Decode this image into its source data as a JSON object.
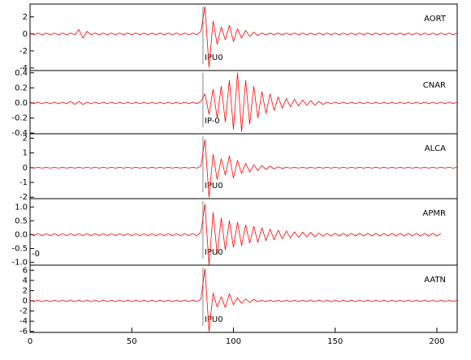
{
  "chart_data": {
    "type": "line",
    "x": [
      0,
      2,
      4,
      6,
      8,
      10,
      12,
      14,
      16,
      18,
      20,
      22,
      24,
      26,
      28,
      30,
      32,
      34,
      36,
      38,
      40,
      42,
      44,
      46,
      48,
      50,
      52,
      54,
      56,
      58,
      60,
      62,
      64,
      66,
      68,
      70,
      72,
      74,
      76,
      78,
      80,
      82,
      84,
      86,
      88,
      90,
      92,
      94,
      96,
      98,
      100,
      102,
      104,
      106,
      108,
      110,
      112,
      114,
      116,
      118,
      120,
      122,
      124,
      126,
      128,
      130,
      132,
      134,
      136,
      138,
      140,
      142,
      144,
      146,
      148,
      150,
      152,
      154,
      156,
      158,
      160,
      162,
      164,
      166,
      168,
      170,
      172,
      174,
      176,
      178,
      180,
      182,
      184,
      186,
      188,
      190,
      192,
      194,
      196,
      198,
      200,
      202,
      204,
      206,
      208,
      210
    ],
    "xlim": [
      0,
      210
    ],
    "xticks": [
      0,
      50,
      100,
      150,
      200
    ],
    "series": [
      {
        "name": "AORT",
        "color": "#ff0000",
        "ylim": [
          -4.3,
          3.5
        ],
        "yticks": [
          -4,
          -2,
          0,
          2
        ],
        "pick": {
          "x": 85,
          "label": "IPU0"
        },
        "values": [
          0.1,
          -0.1,
          0.1,
          -0.1,
          0.1,
          -0.1,
          0.1,
          -0.1,
          0.1,
          -0.1,
          0.1,
          -0.1,
          0.5,
          -0.5,
          0.3,
          -0.1,
          0.1,
          -0.1,
          0.1,
          -0.1,
          0.1,
          -0.1,
          0.1,
          -0.1,
          0.1,
          -0.1,
          0.1,
          -0.1,
          0.1,
          -0.1,
          0.1,
          -0.1,
          0.1,
          -0.1,
          0.1,
          -0.1,
          0.1,
          -0.1,
          0.1,
          -0.1,
          0.1,
          -0.1,
          0.3,
          3.2,
          -3.9,
          1.5,
          -1.2,
          0.8,
          -0.7,
          1.0,
          -0.9,
          0.6,
          -0.5,
          0.4,
          -0.3,
          0.2,
          -0.2,
          0.1,
          -0.1,
          0.1,
          -0.1,
          0.1,
          -0.1,
          0.1,
          -0.1,
          0.1,
          -0.1,
          0.1,
          -0.1,
          0.1,
          -0.1,
          0.1,
          -0.1,
          0.1,
          -0.1,
          0.1,
          -0.1,
          0.1,
          -0.1,
          0.1,
          -0.1,
          0.1,
          -0.1,
          0.1,
          -0.1,
          0.1,
          -0.1,
          0.1,
          -0.1,
          0.1,
          -0.1,
          0.1,
          -0.1,
          0.1,
          -0.1,
          0.1,
          -0.1,
          0.1,
          -0.1,
          0.1,
          -0.1,
          0.1,
          -0.1,
          0.1,
          -0.1,
          0.1
        ]
      },
      {
        "name": "CNAR",
        "color": "#ff0000",
        "ylim": [
          -0.41,
          0.43
        ],
        "yticks": [
          -0.4,
          -0.2,
          {
            "value": 0,
            "label": "0.0"
          },
          0.2,
          0.4
        ],
        "pick": {
          "x": 85,
          "label": "IP-0"
        },
        "values": [
          0.01,
          -0.01,
          0.01,
          -0.01,
          0.01,
          -0.01,
          0.01,
          -0.01,
          0.01,
          -0.01,
          0.02,
          -0.02,
          0.02,
          -0.02,
          0.01,
          -0.01,
          0.01,
          -0.01,
          0.01,
          -0.01,
          0.01,
          -0.01,
          0.01,
          -0.01,
          0.01,
          -0.01,
          0.01,
          -0.01,
          0.01,
          -0.01,
          0.01,
          -0.01,
          0.01,
          -0.01,
          0.01,
          -0.01,
          0.01,
          -0.01,
          0.01,
          -0.01,
          0.01,
          -0.01,
          0.02,
          0.12,
          -0.15,
          0.18,
          -0.2,
          0.22,
          -0.25,
          0.3,
          -0.35,
          0.4,
          -0.38,
          0.3,
          -0.28,
          0.22,
          -0.2,
          0.15,
          -0.14,
          0.12,
          -0.1,
          0.08,
          -0.07,
          0.06,
          -0.05,
          0.05,
          -0.04,
          0.04,
          -0.03,
          0.03,
          -0.03,
          0.02,
          -0.02,
          0.01,
          -0.01,
          0.01,
          -0.01,
          0.01,
          -0.01,
          0.01,
          -0.01,
          0.01,
          -0.01,
          0.01,
          -0.01,
          0.01,
          -0.01,
          0.01,
          -0.01,
          0.01,
          -0.01,
          0.01,
          -0.01,
          0.01,
          -0.01,
          0.01,
          -0.01,
          0.01,
          -0.01,
          0.01,
          -0.01,
          0.01,
          -0.01,
          0.01,
          -0.01,
          0.01
        ]
      },
      {
        "name": "ALCA",
        "color": "#ff0000",
        "ylim": [
          -2.1,
          2.3
        ],
        "yticks": [
          -2,
          -1,
          0,
          1,
          2
        ],
        "pick": {
          "x": 85,
          "label": "IPU0"
        },
        "values": [
          0.03,
          -0.03,
          0.03,
          -0.03,
          0.03,
          -0.03,
          0.03,
          -0.03,
          0.03,
          -0.03,
          0.03,
          -0.03,
          0.03,
          -0.03,
          0.03,
          -0.03,
          0.03,
          -0.03,
          0.03,
          -0.03,
          0.03,
          -0.03,
          0.03,
          -0.03,
          0.03,
          -0.03,
          0.03,
          -0.03,
          0.03,
          -0.03,
          0.03,
          -0.03,
          0.03,
          -0.03,
          0.03,
          -0.03,
          0.03,
          -0.03,
          0.03,
          -0.03,
          0.03,
          -0.03,
          0.1,
          1.9,
          -2.0,
          0.9,
          -0.8,
          0.6,
          -0.5,
          0.8,
          -0.7,
          0.5,
          -0.4,
          0.3,
          -0.3,
          0.2,
          -0.2,
          0.15,
          -0.12,
          0.1,
          -0.08,
          0.06,
          -0.05,
          0.03,
          -0.03,
          0.03,
          -0.03,
          0.03,
          -0.03,
          0.03,
          -0.03,
          0.03,
          -0.03,
          0.03,
          -0.03,
          0.03,
          -0.03,
          0.03,
          -0.03,
          0.03,
          -0.03,
          0.03,
          -0.03,
          0.03,
          -0.03,
          0.03,
          -0.03,
          0.03,
          -0.03,
          0.03,
          -0.03,
          0.03,
          -0.03,
          0.03,
          -0.03,
          0.03,
          -0.03,
          0.03,
          -0.03,
          0.03,
          -0.03,
          0.03,
          -0.03,
          0.03,
          -0.03,
          0.03
        ]
      },
      {
        "name": "APMR",
        "color": "#ff0000",
        "ylim": [
          -1.1,
          1.3
        ],
        "yticks": [
          {
            "value": -1,
            "label": "-1.0"
          },
          -0.5,
          {
            "value": 0,
            "label": "0.0"
          },
          0.5,
          {
            "value": 1,
            "label": "1.0"
          }
        ],
        "pick": {
          "x": 85,
          "label": "IPU0"
        },
        "annotation": "-0",
        "values": [
          0.04,
          -0.04,
          0.04,
          -0.04,
          0.04,
          -0.04,
          0.04,
          -0.04,
          0.04,
          -0.04,
          0.04,
          -0.04,
          0.04,
          -0.04,
          0.04,
          -0.04,
          0.04,
          -0.04,
          0.04,
          -0.04,
          0.04,
          -0.04,
          0.04,
          -0.04,
          0.04,
          -0.04,
          0.04,
          -0.04,
          0.04,
          -0.04,
          0.04,
          -0.04,
          0.04,
          -0.04,
          0.04,
          -0.04,
          0.04,
          -0.04,
          0.04,
          -0.04,
          0.04,
          -0.04,
          0.1,
          1.1,
          -1.1,
          0.8,
          -0.7,
          0.6,
          -0.55,
          0.5,
          -0.45,
          0.45,
          -0.4,
          0.35,
          -0.3,
          0.3,
          -0.28,
          0.25,
          -0.22,
          0.2,
          -0.18,
          0.16,
          -0.15,
          0.13,
          -0.12,
          0.1,
          -0.1,
          0.09,
          -0.08,
          0.08,
          -0.07,
          0.06,
          -0.06,
          0.05,
          -0.05,
          0.05,
          -0.05,
          0.05,
          -0.05,
          0.05,
          -0.05,
          0.05,
          -0.05,
          0.05,
          -0.05,
          0.05,
          -0.05,
          0.05,
          -0.05,
          0.05,
          -0.05,
          0.05,
          -0.05,
          0.05,
          -0.05,
          0.05,
          -0.05,
          0.05,
          -0.05,
          0.05,
          -0.05,
          0.05,
          null,
          null,
          null,
          null
        ]
      },
      {
        "name": "AATN",
        "color": "#ff0000",
        "ylim": [
          -6.2,
          7
        ],
        "yticks": [
          -6,
          -4,
          -2,
          0,
          2,
          4,
          6
        ],
        "pick": {
          "x": 85,
          "label": "IPU0"
        },
        "values": [
          0.15,
          -0.15,
          0.15,
          -0.15,
          0.15,
          -0.15,
          0.15,
          -0.15,
          0.15,
          -0.15,
          0.15,
          -0.15,
          0.15,
          -0.15,
          0.15,
          -0.15,
          0.15,
          -0.15,
          0.15,
          -0.15,
          0.15,
          -0.15,
          0.15,
          -0.15,
          0.15,
          -0.15,
          0.15,
          -0.15,
          0.15,
          -0.15,
          0.15,
          -0.15,
          0.15,
          -0.15,
          0.15,
          -0.15,
          0.15,
          -0.15,
          0.15,
          -0.15,
          0.15,
          -0.15,
          0.3,
          6.3,
          -6.0,
          1.5,
          -1.2,
          0.8,
          -1.3,
          1.4,
          -0.8,
          0.6,
          -0.5,
          0.4,
          -0.3,
          0.3,
          -0.2,
          0.15,
          -0.15,
          0.15,
          -0.15,
          0.15,
          -0.15,
          0.15,
          -0.15,
          0.15,
          -0.15,
          0.15,
          -0.15,
          0.15,
          -0.15,
          0.15,
          -0.15,
          0.15,
          -0.15,
          0.15,
          -0.15,
          0.15,
          -0.15,
          0.15,
          -0.15,
          0.15,
          -0.15,
          0.15,
          -0.15,
          0.15,
          -0.15,
          0.15,
          -0.15,
          0.15,
          -0.15,
          0.15,
          -0.15,
          0.15,
          -0.15,
          0.15,
          -0.15,
          0.15,
          -0.15,
          0.15,
          -0.15,
          0.15,
          -0.15,
          0.15,
          -0.15,
          0.15
        ]
      }
    ]
  }
}
